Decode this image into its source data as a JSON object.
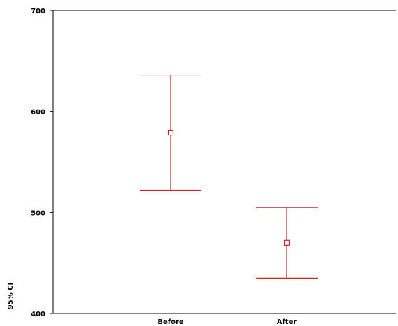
{
  "chart_data": {
    "type": "errorbar",
    "title": "",
    "xlabel": "",
    "ylabel": "95% CI",
    "ylim": [
      400,
      700
    ],
    "yticks": [
      "400",
      "500",
      "600",
      "700"
    ],
    "grid": false,
    "categories": [
      "Before",
      "After"
    ],
    "series": [
      {
        "color": "#cc2222",
        "marker": "square",
        "points": [
          {
            "category": "Before",
            "mean": 579,
            "lower": 522,
            "upper": 636
          },
          {
            "category": "After",
            "mean": 470,
            "lower": 435,
            "upper": 505
          }
        ]
      }
    ]
  }
}
